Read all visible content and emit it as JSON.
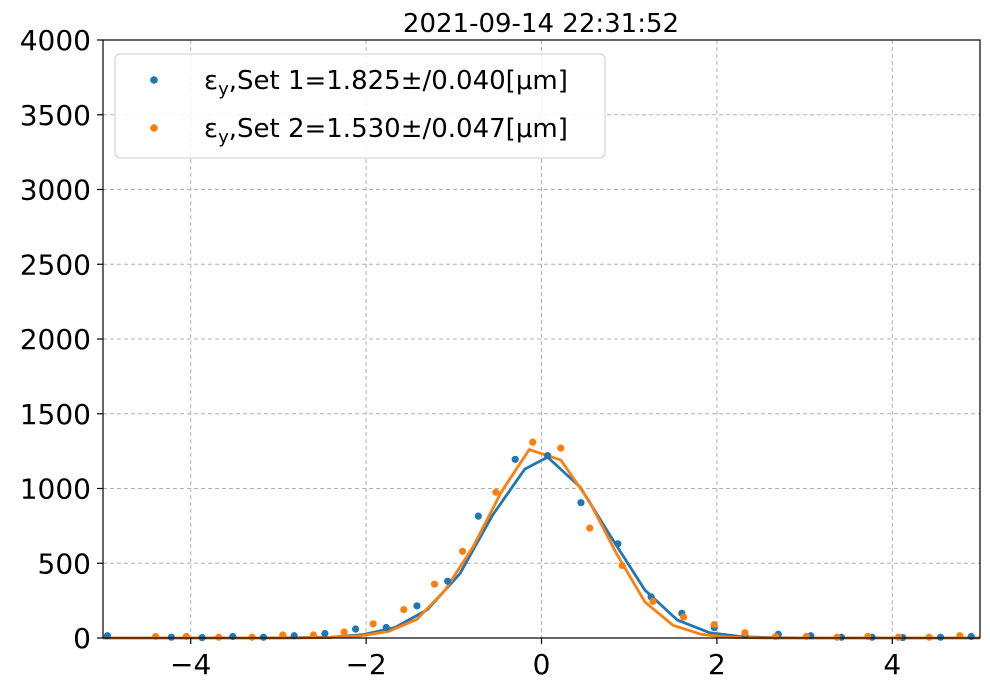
{
  "chart_data": {
    "type": "scatter",
    "title": "2021-09-14 22:31:52",
    "xlabel": "",
    "ylabel": "",
    "xlim": [
      -5,
      5
    ],
    "ylim": [
      0,
      4000
    ],
    "x_ticks": [
      -4,
      -2,
      0,
      2,
      4
    ],
    "x_tick_labels": [
      "−4",
      "−2",
      "0",
      "2",
      "4"
    ],
    "y_ticks": [
      0,
      500,
      1000,
      1500,
      2000,
      2500,
      3000,
      3500,
      4000
    ],
    "y_tick_labels": [
      "0",
      "500",
      "1000",
      "1500",
      "2000",
      "2500",
      "3000",
      "3500",
      "4000"
    ],
    "grid": true,
    "legend_position": "top-left",
    "series": [
      {
        "name": "εy,Set 1=1.825±/0.040[μm]",
        "legend_base": "ε",
        "legend_sub": "y",
        "legend_rest": ",Set 1=1.825±/0.040[μm]",
        "color": "#1f77b4",
        "points": {
          "x": [
            -4.95,
            -4.22,
            -3.87,
            -3.52,
            -3.17,
            -2.82,
            -2.47,
            -2.12,
            -1.77,
            -1.42,
            -1.07,
            -0.72,
            -0.3,
            0.07,
            0.45,
            0.87,
            1.25,
            1.6,
            1.97,
            2.32,
            2.7,
            3.07,
            3.42,
            3.77,
            4.12,
            4.55,
            4.9
          ],
          "y": [
            15,
            5,
            3,
            10,
            5,
            15,
            30,
            60,
            70,
            215,
            380,
            815,
            1195,
            1220,
            905,
            630,
            275,
            165,
            70,
            20,
            25,
            15,
            5,
            5,
            3,
            5,
            10
          ]
        },
        "fit": {
          "x": [
            -5,
            -4.63,
            -4.26,
            -3.89,
            -3.52,
            -3.15,
            -2.78,
            -2.41,
            -2.04,
            -1.67,
            -1.3,
            -0.93,
            -0.56,
            -0.19,
            0.07,
            0.44,
            0.81,
            1.18,
            1.55,
            1.92,
            2.29,
            2.66,
            3.03,
            3.4,
            3.77,
            4.14,
            4.51,
            5
          ],
          "y": [
            0,
            0,
            0,
            0,
            0,
            0,
            2,
            5,
            22,
            70,
            190,
            430,
            820,
            1130,
            1210,
            1010,
            660,
            320,
            120,
            35,
            8,
            2,
            0,
            0,
            0,
            0,
            0,
            0
          ]
        }
      },
      {
        "name": "εy,Set 2=1.530±/0.047[μm]",
        "legend_base": "ε",
        "legend_sub": "y",
        "legend_rest": ",Set 2=1.530±/0.047[μm]",
        "color": "#ff7f0e",
        "points": {
          "x": [
            -4.4,
            -4.05,
            -3.68,
            -3.3,
            -2.95,
            -2.6,
            -2.25,
            -1.92,
            -1.57,
            -1.22,
            -0.9,
            -0.52,
            -0.1,
            0.22,
            0.55,
            0.92,
            1.27,
            1.62,
            1.97,
            2.32,
            2.67,
            3.02,
            3.37,
            3.72,
            4.07,
            4.42,
            4.77
          ],
          "y": [
            10,
            10,
            5,
            5,
            20,
            20,
            40,
            95,
            190,
            360,
            580,
            975,
            1310,
            1270,
            735,
            485,
            245,
            140,
            90,
            35,
            10,
            10,
            5,
            10,
            5,
            5,
            15
          ]
        },
        "fit": {
          "x": [
            -5,
            -4.58,
            -4.16,
            -3.74,
            -3.32,
            -2.9,
            -2.48,
            -2.06,
            -1.74,
            -1.42,
            -1.1,
            -0.78,
            -0.46,
            -0.14,
            0.22,
            0.54,
            0.86,
            1.18,
            1.5,
            1.82,
            2.14,
            2.46,
            2.78,
            3.2,
            3.62,
            4.04,
            4.46,
            5
          ],
          "y": [
            0,
            0,
            0,
            0,
            0,
            0,
            3,
            15,
            45,
            125,
            320,
            610,
            975,
            1260,
            1190,
            920,
            560,
            240,
            85,
            25,
            5,
            1,
            0,
            0,
            0,
            0,
            0,
            0
          ]
        }
      }
    ]
  }
}
